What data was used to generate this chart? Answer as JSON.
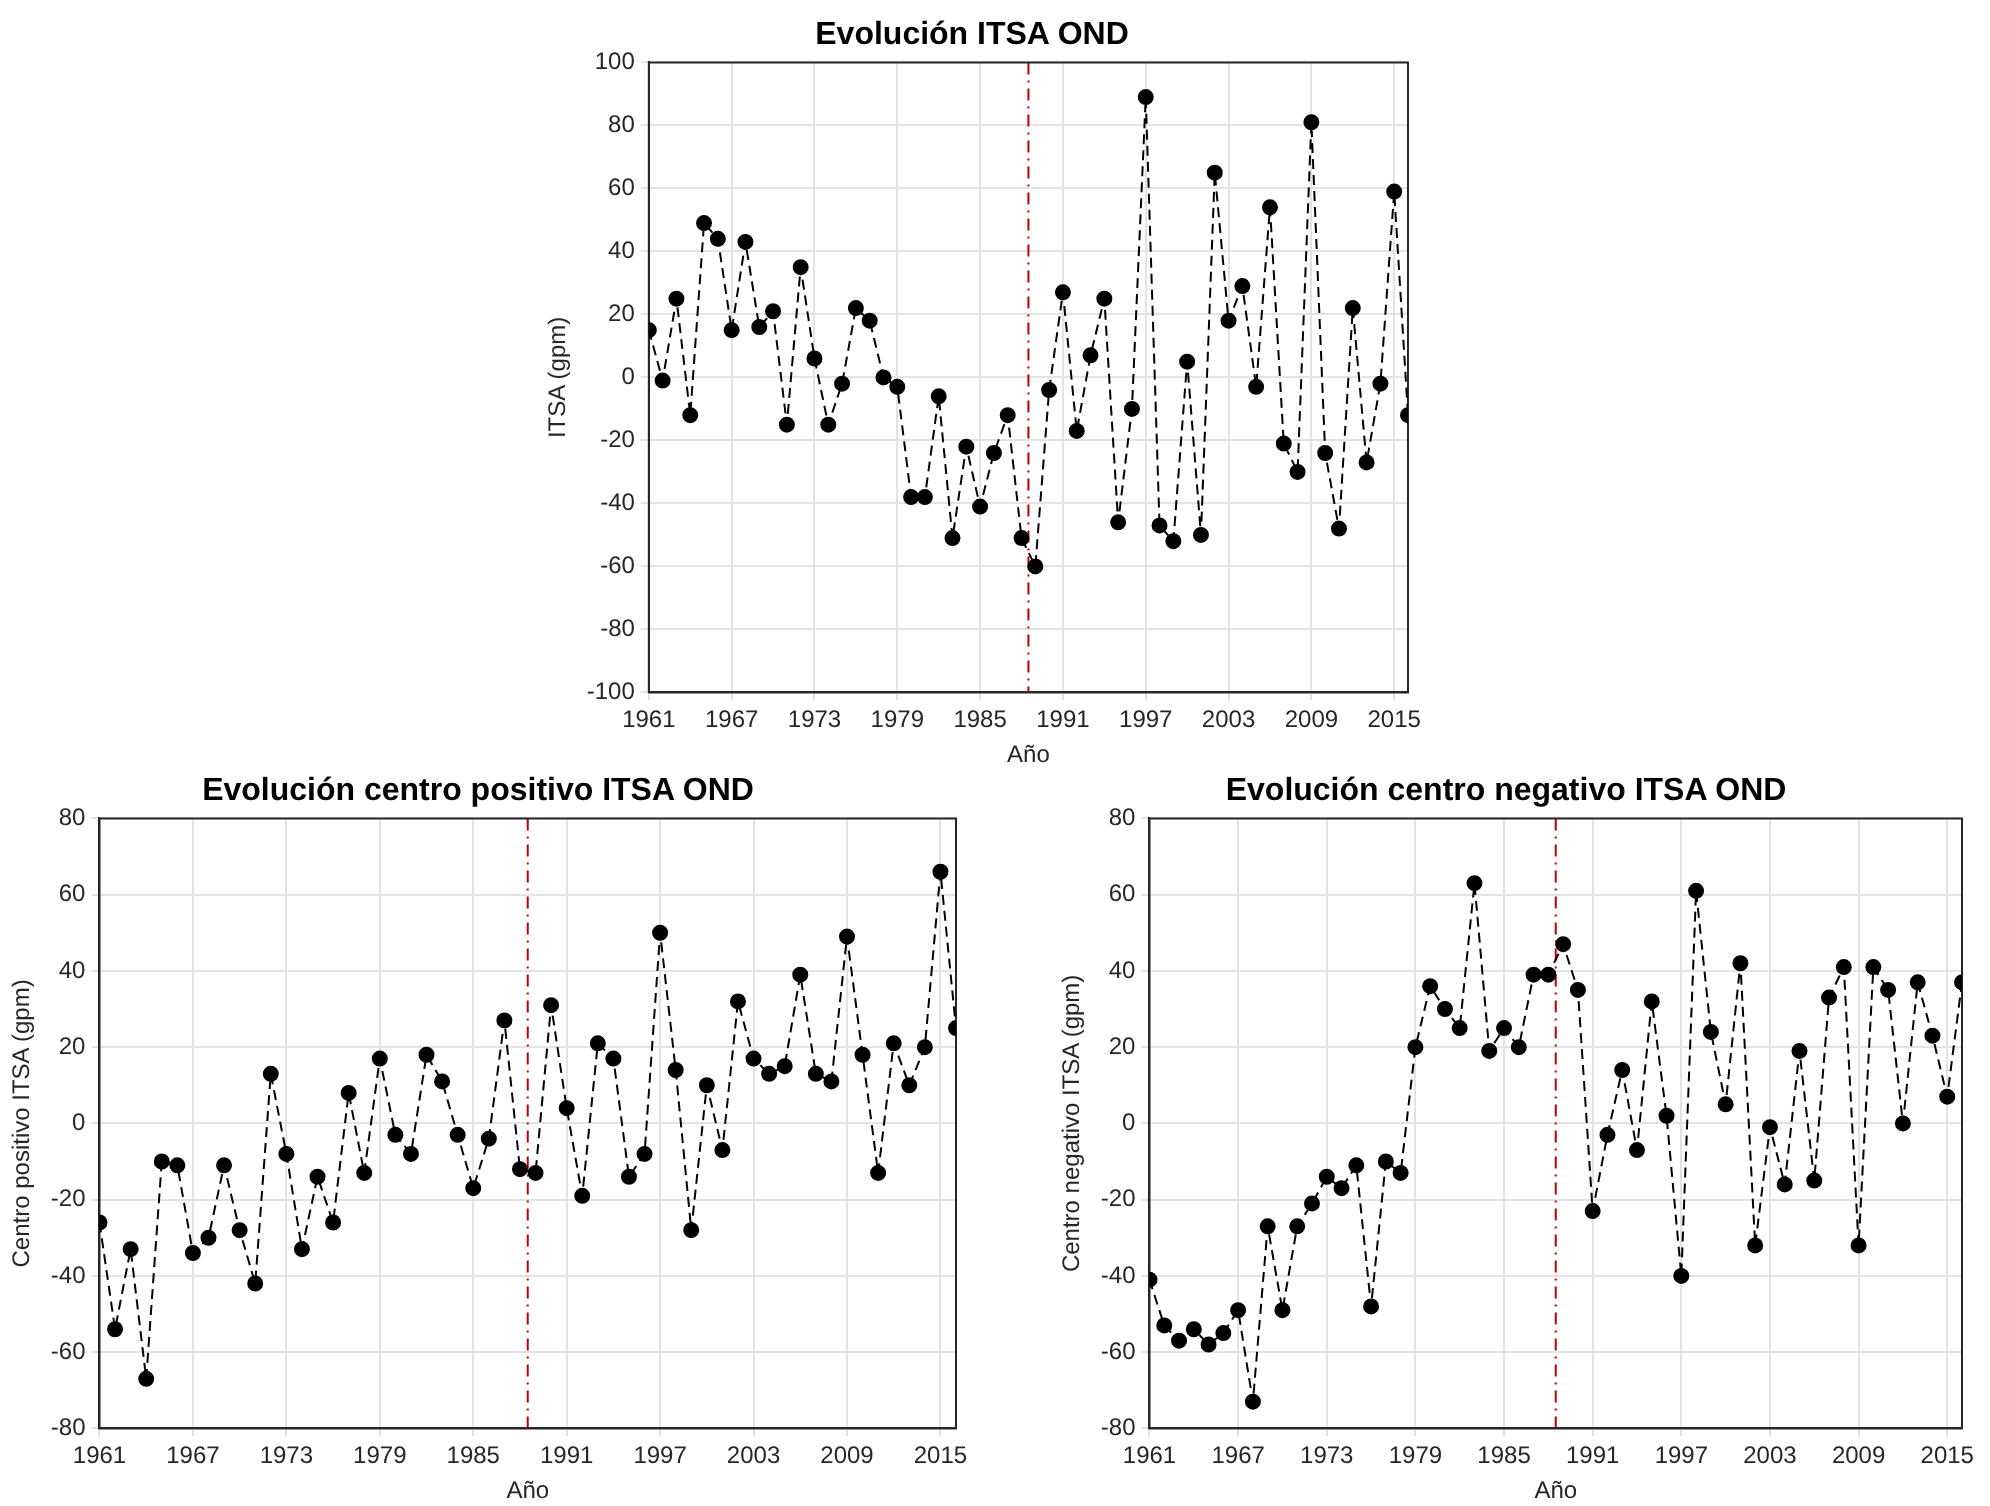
{
  "chart_data": [
    {
      "type": "line",
      "title": "Evolución ITSA OND",
      "xlabel": "Año",
      "ylabel": "ITSA (gpm)",
      "xlim": [
        1961,
        2016
      ],
      "xticks": [
        1961,
        1967,
        1973,
        1979,
        1985,
        1991,
        1997,
        2003,
        2009,
        2015
      ],
      "ylim": [
        -100,
        100
      ],
      "yticks": [
        -100,
        -80,
        -60,
        -40,
        -20,
        0,
        20,
        40,
        60,
        80,
        100
      ],
      "grid": true,
      "marker": "circle",
      "line_style": "dashed",
      "x": [
        1961,
        1962,
        1963,
        1964,
        1965,
        1966,
        1967,
        1968,
        1969,
        1970,
        1971,
        1972,
        1973,
        1974,
        1975,
        1976,
        1977,
        1978,
        1979,
        1980,
        1981,
        1982,
        1983,
        1984,
        1985,
        1986,
        1987,
        1988,
        1989,
        1990,
        1991,
        1992,
        1993,
        1994,
        1995,
        1996,
        1997,
        1998,
        1999,
        2000,
        2001,
        2002,
        2003,
        2004,
        2005,
        2006,
        2007,
        2008,
        2009,
        2010,
        2011,
        2012,
        2013,
        2014,
        2015,
        2016
      ],
      "series": [
        {
          "color": "#000000",
          "values": [
            15,
            -1,
            25,
            -12,
            49,
            44,
            15,
            43,
            16,
            21,
            -15,
            35,
            6,
            -15,
            -2,
            22,
            18,
            0,
            -3,
            -38,
            -38,
            -6,
            -51,
            -22,
            -41,
            -24,
            -12,
            -51,
            -60,
            -4,
            27,
            -17,
            7,
            25,
            -46,
            -10,
            89,
            -47,
            -52,
            5,
            -50,
            65,
            18,
            29,
            -3,
            54,
            -21,
            -30,
            81,
            -24,
            -48,
            22,
            -27,
            -2,
            59,
            -12
          ]
        }
      ],
      "ref_lines": [
        {
          "axis": "x",
          "value": 1988.5,
          "color": "#c00000",
          "line_style": "dashed"
        }
      ]
    },
    {
      "type": "line",
      "title": "Evolución centro positivo ITSA OND",
      "xlabel": "Año",
      "ylabel": "Centro positivo ITSA (gpm)",
      "xlim": [
        1961,
        2016
      ],
      "xticks": [
        1961,
        1967,
        1973,
        1979,
        1985,
        1991,
        1997,
        2003,
        2009,
        2015
      ],
      "ylim": [
        -80,
        80
      ],
      "yticks": [
        -80,
        -60,
        -40,
        -20,
        0,
        20,
        40,
        60,
        80
      ],
      "grid": true,
      "marker": "circle",
      "line_style": "dashed",
      "x": [
        1961,
        1962,
        1963,
        1964,
        1965,
        1966,
        1967,
        1968,
        1969,
        1970,
        1971,
        1972,
        1973,
        1974,
        1975,
        1976,
        1977,
        1978,
        1979,
        1980,
        1981,
        1982,
        1983,
        1984,
        1985,
        1986,
        1987,
        1988,
        1989,
        1990,
        1991,
        1992,
        1993,
        1994,
        1995,
        1996,
        1997,
        1998,
        1999,
        2000,
        2001,
        2002,
        2003,
        2004,
        2005,
        2006,
        2007,
        2008,
        2009,
        2010,
        2011,
        2012,
        2013,
        2014,
        2015,
        2016
      ],
      "series": [
        {
          "color": "#000000",
          "values": [
            -26,
            -54,
            -33,
            -67,
            -10,
            -11,
            -34,
            -30,
            -11,
            -28,
            -42,
            13,
            -8,
            -33,
            -14,
            -26,
            8,
            -13,
            17,
            -3,
            -8,
            18,
            11,
            -3,
            -17,
            -4,
            27,
            -12,
            -13,
            31,
            4,
            -19,
            21,
            17,
            -14,
            -8,
            50,
            14,
            -28,
            10,
            -7,
            32,
            17,
            13,
            15,
            39,
            13,
            11,
            49,
            18,
            -13,
            21,
            10,
            20,
            66,
            25
          ]
        }
      ],
      "ref_lines": [
        {
          "axis": "x",
          "value": 1988.5,
          "color": "#c00000",
          "line_style": "dashed"
        }
      ]
    },
    {
      "type": "line",
      "title": "Evolución centro negativo ITSA OND",
      "xlabel": "Año",
      "ylabel": "Centro negativo ITSA (gpm)",
      "xlim": [
        1961,
        2016
      ],
      "xticks": [
        1961,
        1967,
        1973,
        1979,
        1985,
        1991,
        1997,
        2003,
        2009,
        2015
      ],
      "ylim": [
        -80,
        80
      ],
      "yticks": [
        -80,
        -60,
        -40,
        -20,
        0,
        20,
        40,
        60,
        80
      ],
      "grid": true,
      "marker": "circle",
      "line_style": "dashed",
      "x": [
        1961,
        1962,
        1963,
        1964,
        1965,
        1966,
        1967,
        1968,
        1969,
        1970,
        1971,
        1972,
        1973,
        1974,
        1975,
        1976,
        1977,
        1978,
        1979,
        1980,
        1981,
        1982,
        1983,
        1984,
        1985,
        1986,
        1987,
        1988,
        1989,
        1990,
        1991,
        1992,
        1993,
        1994,
        1995,
        1996,
        1997,
        1998,
        1999,
        2000,
        2001,
        2002,
        2003,
        2004,
        2005,
        2006,
        2007,
        2008,
        2009,
        2010,
        2011,
        2012,
        2013,
        2014,
        2015,
        2016
      ],
      "series": [
        {
          "color": "#000000",
          "values": [
            -41,
            -53,
            -57,
            -54,
            -58,
            -55,
            -49,
            -73,
            -27,
            -49,
            -27,
            -21,
            -14,
            -17,
            -11,
            -48,
            -10,
            -13,
            20,
            36,
            30,
            25,
            63,
            19,
            25,
            20,
            39,
            39,
            47,
            35,
            -23,
            -3,
            14,
            -7,
            32,
            2,
            -40,
            61,
            24,
            5,
            42,
            -32,
            -1,
            -16,
            19,
            -15,
            33,
            41,
            -32,
            41,
            35,
            0,
            37,
            23,
            7,
            37
          ]
        }
      ],
      "ref_lines": [
        {
          "axis": "x",
          "value": 1988.5,
          "color": "#c00000",
          "line_style": "dashed"
        }
      ]
    }
  ]
}
